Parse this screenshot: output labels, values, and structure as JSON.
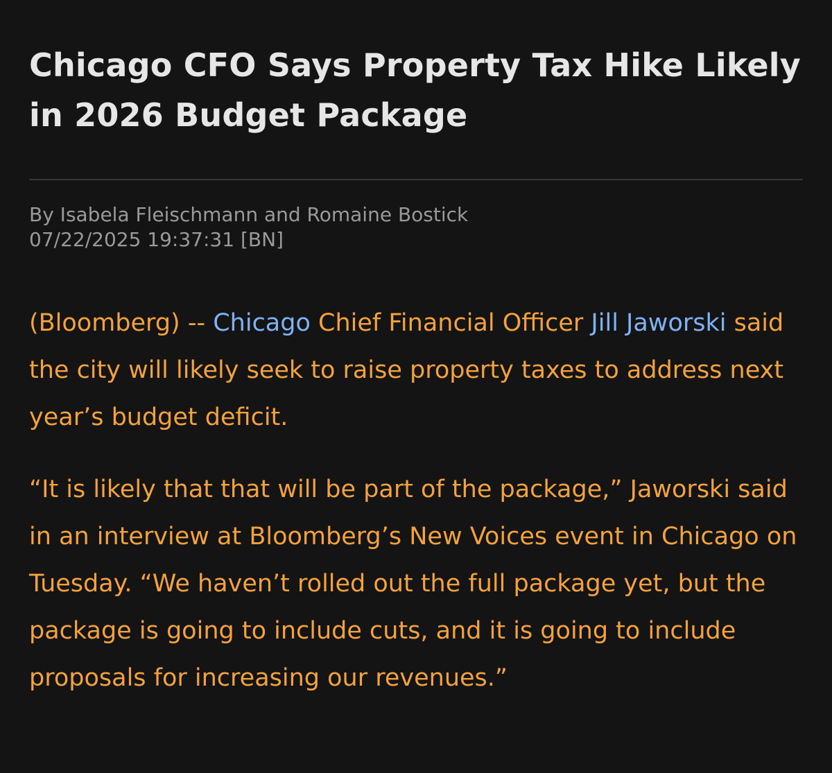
{
  "article": {
    "headline": "Chicago CFO Says Property Tax Hike Likely in 2026 Budget Package",
    "byline": "By Isabela Fleischmann and Romaine Bostick",
    "timestamp": "07/22/2025 19:37:31 [BN]",
    "paragraph1": {
      "source": "(Bloomberg) -- ",
      "link_city": "Chicago",
      "middle": " Chief Financial Officer ",
      "link_person": "Jill Jaworski",
      "rest": " said the city will likely seek to raise property taxes to address next year’s budget deficit."
    },
    "paragraph2": "“It is likely that that will be part of the package,” Jaworski said in an interview at Bloomberg’s New Voices event in Chicago on Tuesday. “We haven’t rolled out the full package yet, but the package is going to include cuts, and it is going to include proposals for increasing our revenues.”"
  },
  "colors": {
    "background": "#141414",
    "headline": "#e6e6e6",
    "meta": "#9a9a9a",
    "body_text": "#f4a23d",
    "link": "#7fb3f5",
    "divider": "#3a3a3a"
  }
}
